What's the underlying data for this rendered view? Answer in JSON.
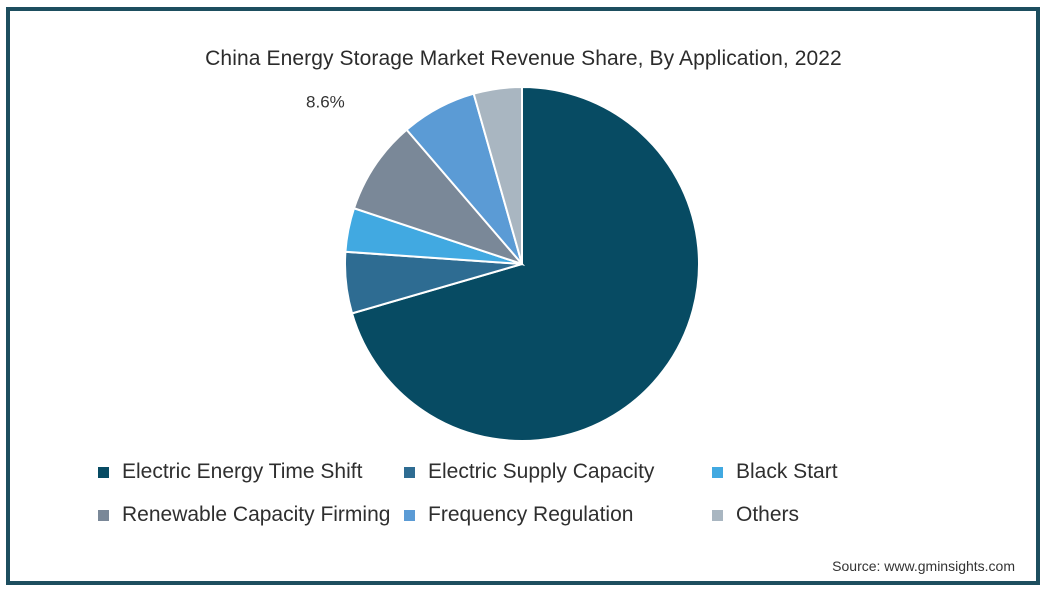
{
  "chart_data": {
    "type": "pie",
    "title": "China Energy Storage Market Revenue Share, By Application, 2022",
    "slices": [
      {
        "name": "Electric Energy Time Shift",
        "value": 70.5,
        "color": "#074b63"
      },
      {
        "name": "Electric Supply Capacity",
        "value": 5.6,
        "color": "#2e6c92"
      },
      {
        "name": "Black Start",
        "value": 4.0,
        "color": "#41a9e1"
      },
      {
        "name": "Renewable Capacity Firming",
        "value": 8.6,
        "color": "#7a8898",
        "label": "8.6%"
      },
      {
        "name": "Frequency Regulation",
        "value": 6.9,
        "color": "#5b9bd5"
      },
      {
        "name": "Others",
        "value": 4.4,
        "color": "#a9b6c1"
      }
    ],
    "legend_position": "bottom",
    "start": "12 o'clock, clockwise"
  },
  "source": "Source: www.gminsights.com"
}
